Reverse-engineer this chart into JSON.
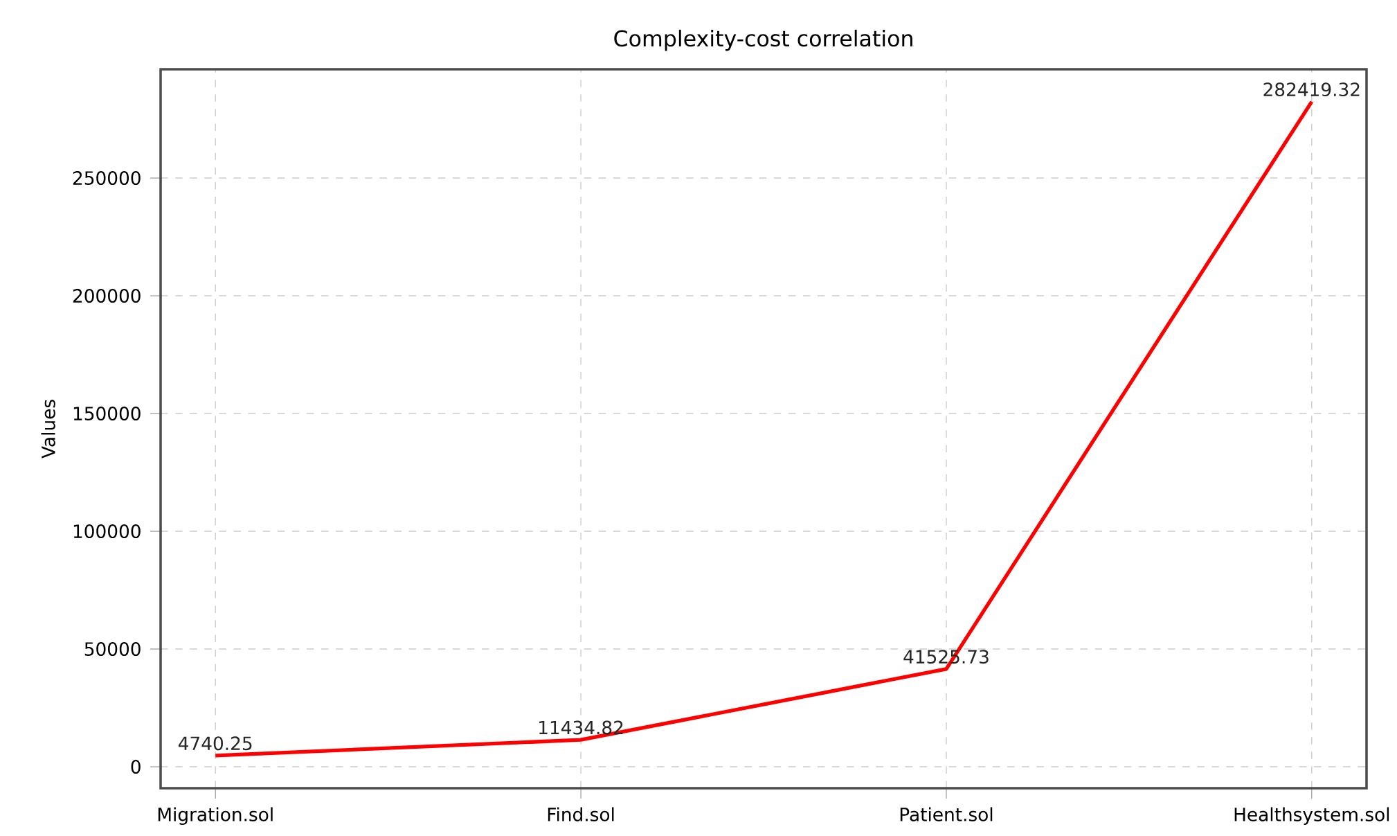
{
  "chart_data": {
    "type": "line",
    "title": "Complexity-cost correlation",
    "ylabel": "Values",
    "categories": [
      "Migration.sol",
      "Find.sol",
      "Patient.sol",
      "Healthsystem.sol"
    ],
    "series": [
      {
        "color": "#ff0000",
        "values": [
          4740.25,
          11434.82,
          41525.73,
          282419.32
        ]
      }
    ],
    "value_labels": [
      "4740.25",
      "11434.82",
      "41525.73",
      "282419.32"
    ],
    "ylim": [
      -9100,
      296200
    ],
    "yticks": [
      0,
      50000,
      100000,
      150000,
      200000,
      250000
    ],
    "grid": true,
    "marker": "none",
    "line_style": "solid"
  }
}
